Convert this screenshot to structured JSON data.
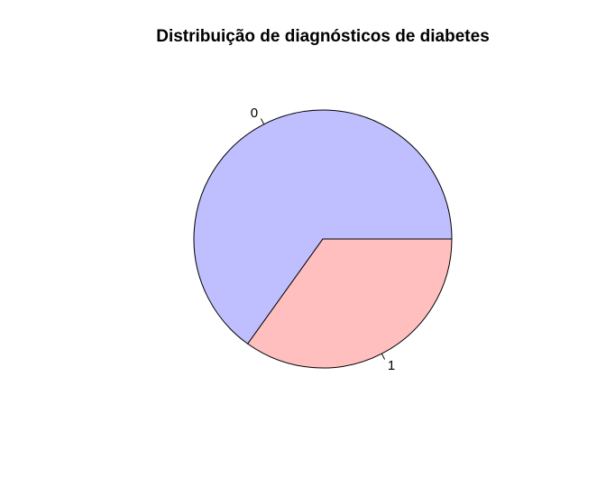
{
  "chart_data": {
    "type": "pie",
    "title": "Distribuição de diagnósticos de diabetes",
    "categories": [
      "0",
      "1"
    ],
    "values": [
      500,
      268
    ],
    "colors": [
      "#bfbfff",
      "#ffbfbf"
    ],
    "border_color": "#000000",
    "start_angle_deg": 0,
    "direction": "counterclockwise",
    "legend": "none"
  }
}
